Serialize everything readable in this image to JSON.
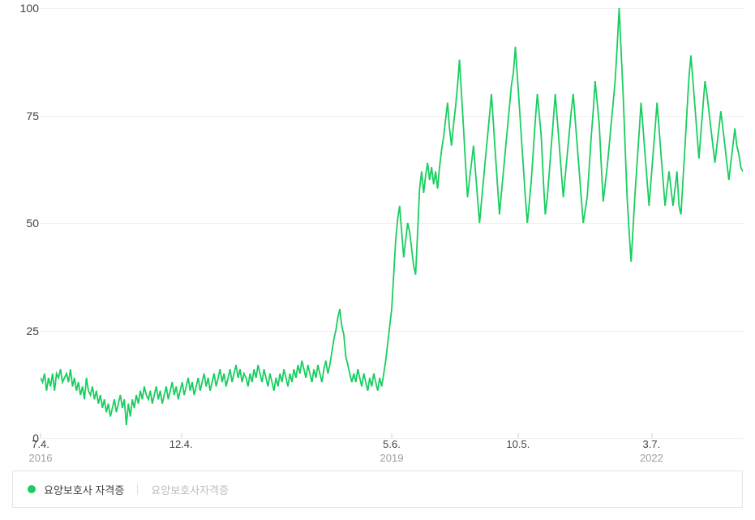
{
  "chart": {
    "type": "line",
    "ylim": [
      0,
      100
    ],
    "ytick_step": 25,
    "yticks": [
      0,
      25,
      50,
      75,
      100
    ],
    "xticks": [
      {
        "pos": 0.0,
        "label": "7.4.",
        "year": "2016"
      },
      {
        "pos": 0.2,
        "label": "12.4."
      },
      {
        "pos": 0.5,
        "label": "5.6.",
        "year": "2019"
      },
      {
        "pos": 0.68,
        "label": "10.5."
      },
      {
        "pos": 0.87,
        "label": "3.7.",
        "year": "2022"
      }
    ],
    "background_color": "#ffffff",
    "grid_color": "#f1f1f1",
    "line_color": "#19ce60",
    "line_width": 1.8,
    "axis_text_color": "#424242",
    "axis_year_color": "#9e9e9e",
    "values": [
      14,
      13,
      15,
      11,
      14,
      12,
      15,
      11,
      15,
      14,
      16,
      13,
      14,
      15,
      13,
      16,
      12,
      14,
      11,
      13,
      10,
      12,
      9,
      14,
      11,
      10,
      12,
      9,
      11,
      8,
      10,
      7,
      9,
      6,
      8,
      5,
      7,
      9,
      6,
      8,
      10,
      7,
      9,
      3,
      8,
      5,
      9,
      7,
      10,
      8,
      11,
      9,
      12,
      10,
      9,
      11,
      8,
      10,
      12,
      9,
      11,
      8,
      10,
      12,
      9,
      11,
      13,
      10,
      12,
      9,
      11,
      13,
      10,
      12,
      14,
      11,
      13,
      10,
      12,
      14,
      11,
      13,
      15,
      12,
      14,
      11,
      13,
      15,
      12,
      14,
      16,
      13,
      15,
      12,
      14,
      16,
      13,
      15,
      17,
      14,
      16,
      13,
      15,
      14,
      12,
      15,
      13,
      16,
      14,
      17,
      15,
      13,
      16,
      14,
      12,
      15,
      13,
      11,
      14,
      12,
      15,
      13,
      16,
      14,
      12,
      15,
      13,
      16,
      14,
      17,
      15,
      18,
      16,
      14,
      17,
      15,
      13,
      16,
      14,
      17,
      15,
      13,
      16,
      18,
      15,
      17,
      20,
      23,
      25,
      28,
      30,
      26,
      24,
      19,
      17,
      15,
      13,
      15,
      13,
      16,
      14,
      12,
      15,
      13,
      11,
      14,
      12,
      15,
      13,
      11,
      14,
      12,
      15,
      18,
      22,
      26,
      30,
      38,
      46,
      51,
      54,
      48,
      42,
      46,
      50,
      48,
      44,
      40,
      38,
      48,
      58,
      62,
      57,
      61,
      64,
      60,
      63,
      59,
      62,
      58,
      63,
      67,
      70,
      74,
      78,
      72,
      68,
      73,
      77,
      82,
      88,
      80,
      72,
      64,
      56,
      60,
      64,
      68,
      62,
      56,
      50,
      55,
      60,
      65,
      70,
      75,
      80,
      73,
      66,
      59,
      52,
      57,
      62,
      67,
      72,
      77,
      82,
      85,
      91,
      84,
      77,
      70,
      63,
      56,
      50,
      55,
      60,
      67,
      74,
      80,
      75,
      70,
      60,
      52,
      56,
      62,
      68,
      74,
      80,
      74,
      68,
      62,
      56,
      61,
      66,
      71,
      76,
      80,
      74,
      68,
      62,
      56,
      50,
      53,
      56,
      63,
      70,
      76,
      83,
      78,
      73,
      64,
      55,
      59,
      63,
      68,
      73,
      78,
      83,
      91,
      100,
      90,
      80,
      68,
      56,
      48,
      41,
      49,
      57,
      64,
      71,
      78,
      72,
      66,
      60,
      54,
      60,
      66,
      72,
      78,
      72,
      66,
      60,
      54,
      58,
      62,
      58,
      54,
      58,
      62,
      54,
      52,
      60,
      68,
      76,
      84,
      89,
      83,
      77,
      71,
      65,
      71,
      77,
      83,
      80,
      76,
      72,
      68,
      64,
      68,
      72,
      76,
      72,
      68,
      64,
      60,
      64,
      68,
      72,
      68,
      66,
      63,
      62
    ]
  },
  "legend": {
    "dot_color": "#19ce60",
    "label": "요양보호사 자격증",
    "sub_label": "요양보호사자격증"
  }
}
